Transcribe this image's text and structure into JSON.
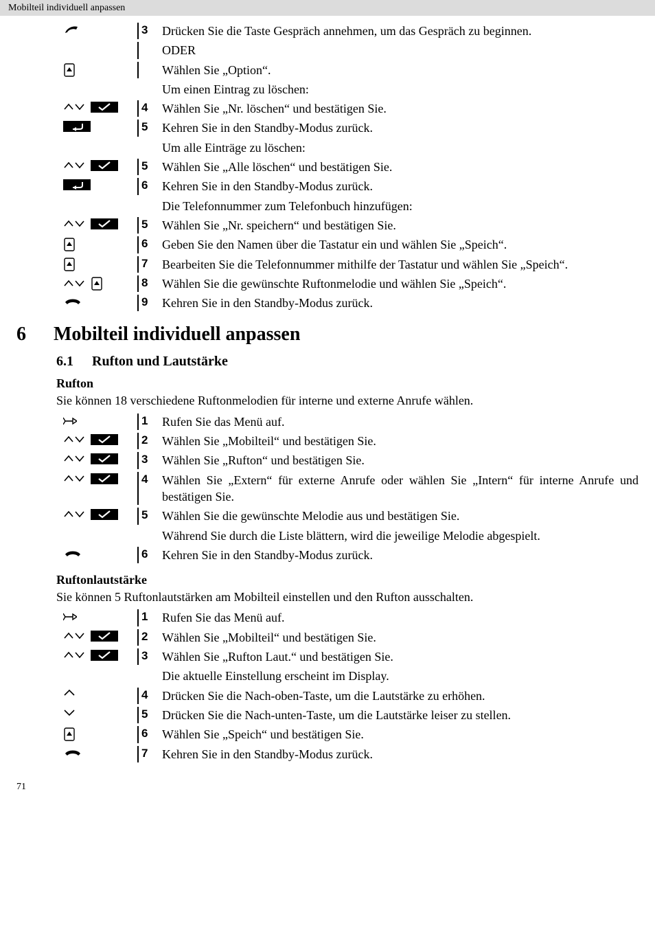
{
  "header": {
    "title": "Mobilteil individuell anpassen"
  },
  "block1": {
    "rows": [
      {
        "icons": [
          "handset-lift"
        ],
        "num": "3",
        "text": "Drücken Sie die Taste Gespräch annehmen, um das Gespräch zu beginnen."
      },
      {
        "icons": [],
        "num": "",
        "text": "ODER"
      },
      {
        "icons": [
          "softkey"
        ],
        "num": "",
        "text": "Wählen Sie „Option“."
      }
    ],
    "intro1": "Um einen Eintrag zu löschen:",
    "rows_b": [
      {
        "icons": [
          "updown",
          "check"
        ],
        "num": "4",
        "text": "Wählen Sie „Nr. löschen“ und bestätigen Sie."
      },
      {
        "icons": [
          "back"
        ],
        "num": "5",
        "text": "Kehren Sie in den Standby-Modus zurück."
      }
    ],
    "intro2": "Um alle Einträge zu löschen:",
    "rows_c": [
      {
        "icons": [
          "updown",
          "check"
        ],
        "num": "5",
        "text": "Wählen Sie „Alle löschen“ und bestätigen Sie."
      },
      {
        "icons": [
          "back"
        ],
        "num": "6",
        "text": "Kehren Sie in den Standby-Modus zurück."
      }
    ],
    "intro3": "Die Telefonnummer zum Telefonbuch hinzufügen:",
    "rows_d": [
      {
        "icons": [
          "updown",
          "check"
        ],
        "num": "5",
        "text": "Wählen Sie „Nr. speichern“ und bestätigen Sie."
      },
      {
        "icons": [
          "softkey"
        ],
        "num": "6",
        "text": "Geben Sie den Namen über die Tastatur ein und wählen Sie „Speich“."
      },
      {
        "icons": [
          "softkey"
        ],
        "num": "7",
        "text": "Bearbeiten Sie die Telefonnummer mithilfe der Tastatur und wählen Sie „Speich“."
      },
      {
        "icons": [
          "updown",
          "softkey"
        ],
        "num": "8",
        "text": "Wählen Sie die gewünschte Ruftonmelodie und wählen Sie „Speich“."
      },
      {
        "icons": [
          "hangup"
        ],
        "num": "9",
        "text": "Kehren Sie in den Standby-Modus zurück."
      }
    ]
  },
  "section": {
    "num": "6",
    "title": "Mobilteil individuell anpassen"
  },
  "subsection": {
    "num": "6.1",
    "title": "Rufton und Lautstärke"
  },
  "rufton": {
    "title": "Rufton",
    "intro": "Sie können 18 verschiedene Ruftonmelodien für interne und externe Anrufe wählen.",
    "rows": [
      {
        "icons": [
          "menu"
        ],
        "num": "1",
        "text": "Rufen Sie das Menü auf."
      },
      {
        "icons": [
          "updown",
          "check"
        ],
        "num": "2",
        "text": "Wählen Sie „Mobilteil“ und bestätigen Sie."
      },
      {
        "icons": [
          "updown",
          "check"
        ],
        "num": "3",
        "text": "Wählen Sie „Rufton“ und bestätigen Sie."
      },
      {
        "icons": [
          "updown",
          "check"
        ],
        "num": "4",
        "text": "Wählen Sie „Extern“ für externe Anrufe oder wählen Sie „Intern“ für interne Anrufe und bestätigen Sie."
      },
      {
        "icons": [
          "updown",
          "check"
        ],
        "num": "5",
        "text": "Wählen Sie die gewünschte Melodie aus und bestätigen Sie."
      }
    ],
    "note": "Während Sie durch die Liste blättern, wird die jeweilige Melodie abgespielt.",
    "rows_b": [
      {
        "icons": [
          "hangup"
        ],
        "num": "6",
        "text": "Kehren Sie in den Standby-Modus zurück."
      }
    ]
  },
  "ruflaut": {
    "title": "Ruftonlautstärke",
    "intro": "Sie können 5 Ruftonlautstärken am Mobilteil einstellen und den Rufton ausschalten.",
    "rows": [
      {
        "icons": [
          "menu"
        ],
        "num": "1",
        "text": "Rufen Sie das Menü auf."
      },
      {
        "icons": [
          "updown",
          "check"
        ],
        "num": "2",
        "text": "Wählen Sie „Mobilteil“ und bestätigen Sie."
      },
      {
        "icons": [
          "updown",
          "check"
        ],
        "num": "3",
        "text": "Wählen Sie „Rufton Laut.“ und bestätigen Sie."
      }
    ],
    "note": "Die aktuelle Einstellung erscheint im Display.",
    "rows_b": [
      {
        "icons": [
          "up"
        ],
        "num": "4",
        "text": "Drücken Sie die Nach-oben-Taste, um die Lautstärke zu erhöhen."
      },
      {
        "icons": [
          "down"
        ],
        "num": "5",
        "text": "Drücken Sie die Nach-unten-Taste, um die Lautstärke leiser zu stellen."
      },
      {
        "icons": [
          "softkey"
        ],
        "num": "6",
        "text": "Wählen Sie „Speich“ und bestätigen Sie."
      },
      {
        "icons": [
          "hangup"
        ],
        "num": "7",
        "text": "Kehren Sie in den Standby-Modus zurück."
      }
    ]
  },
  "pagenum": "71"
}
